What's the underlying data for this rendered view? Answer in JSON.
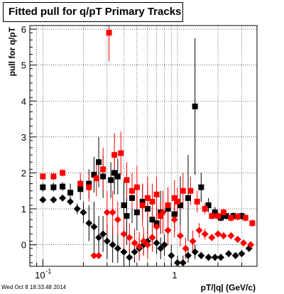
{
  "title": "Fitted pull for q/pT  Primary Tracks",
  "footer": "Wed Oct  8 18:33:48 2014",
  "chart_data": {
    "type": "scatter",
    "title": "Fitted pull for q/pT  Primary Tracks",
    "xlabel": "pT/|q|  (GeV/c)",
    "ylabel": "pull for q/pT",
    "xscale": "log",
    "xlim": [
      0.08,
      3.9
    ],
    "ylim": [
      -0.6,
      6.1
    ],
    "grid": true,
    "x_major_ticks": [
      0.1,
      1
    ],
    "x_major_ticklabels": [
      "10",
      "1"
    ],
    "x_major_tick_exponents": [
      "-1",
      ""
    ],
    "y_ticks": [
      0,
      1,
      2,
      3,
      4,
      5,
      6
    ],
    "y_ticklabels": [
      "0",
      "1",
      "2",
      "3",
      "4",
      "5",
      "6"
    ],
    "colors": {
      "black": "#000000",
      "red": "#ff0000"
    },
    "series": [
      {
        "marker": "square",
        "color": "#000000",
        "x": [
          0.1,
          0.12,
          0.14,
          0.16,
          0.19,
          0.22,
          0.24,
          0.26,
          0.28,
          0.32,
          0.34,
          0.36,
          0.4,
          0.42,
          0.46,
          0.5,
          0.55,
          0.6,
          0.65,
          0.7,
          0.75,
          0.85,
          0.95,
          1.05,
          1.2,
          1.35,
          1.5,
          1.7,
          1.9,
          2.1,
          2.3,
          2.6,
          3.0
        ],
        "y": [
          1.6,
          1.6,
          1.62,
          1.45,
          1.55,
          1.7,
          1.95,
          2.3,
          1.9,
          1.8,
          2.0,
          1.9,
          1.1,
          0.8,
          1.3,
          0.9,
          1.2,
          1.0,
          0.7,
          0.6,
          0.9,
          1.0,
          0.85,
          1.1,
          1.3,
          3.85,
          1.6,
          1.1,
          0.9,
          0.75,
          0.8,
          0.8,
          0.8
        ],
        "err": [
          0.12,
          0.12,
          0.12,
          0.25,
          0.3,
          0.4,
          0.5,
          0.7,
          0.6,
          0.5,
          0.6,
          0.5,
          0.7,
          0.8,
          0.7,
          0.5,
          0.5,
          0.7,
          0.5,
          0.5,
          0.6,
          0.6,
          0.5,
          0.8,
          1.2,
          1.9,
          0.4,
          0.2,
          0.15,
          0.1,
          0.1,
          0.1,
          0.1
        ]
      },
      {
        "marker": "square",
        "color": "#ff0000",
        "x": [
          0.1,
          0.12,
          0.14,
          0.19,
          0.22,
          0.25,
          0.28,
          0.31,
          0.34,
          0.38,
          0.42,
          0.46,
          0.5,
          0.55,
          0.6,
          0.65,
          0.7,
          0.75,
          0.85,
          0.95,
          1.0,
          1.1,
          1.25,
          1.4,
          1.6,
          1.8,
          2.0,
          2.2,
          2.5,
          2.8,
          3.2,
          3.6
        ],
        "y": [
          1.9,
          1.9,
          2.0,
          1.7,
          1.6,
          1.85,
          2.1,
          5.9,
          2.5,
          2.55,
          1.8,
          1.5,
          1.6,
          1.1,
          1.3,
          1.2,
          1.4,
          0.8,
          1.1,
          1.3,
          1.2,
          1.5,
          1.5,
          1.2,
          1.0,
          0.8,
          0.8,
          0.9,
          0.75,
          0.78,
          0.75,
          0.6
        ],
        "err": [
          0.1,
          0.1,
          0.1,
          0.3,
          0.4,
          0.5,
          0.6,
          0.8,
          0.6,
          0.6,
          0.5,
          0.5,
          0.6,
          0.6,
          0.6,
          0.5,
          0.5,
          0.4,
          0.5,
          0.5,
          0.4,
          0.5,
          0.4,
          0.3,
          0.15,
          0.1,
          0.1,
          0.1,
          0.1,
          0.1,
          0.1,
          0.1
        ]
      },
      {
        "marker": "diamond",
        "color": "#000000",
        "x": [
          0.1,
          0.12,
          0.14,
          0.16,
          0.18,
          0.2,
          0.22,
          0.24,
          0.26,
          0.28,
          0.3,
          0.33,
          0.36,
          0.4,
          0.44,
          0.48,
          0.52,
          0.56,
          0.6,
          0.65,
          0.7,
          0.75,
          0.8,
          0.9,
          1.0,
          1.1,
          1.2,
          1.35,
          1.5,
          1.7,
          1.9,
          2.1,
          2.4,
          2.7,
          3.0,
          3.4
        ],
        "y": [
          1.25,
          1.25,
          1.3,
          1.2,
          1.0,
          0.9,
          0.6,
          0.5,
          0.2,
          0.3,
          0.1,
          0.0,
          -0.1,
          -0.2,
          -0.35,
          -0.2,
          -0.1,
          0.0,
          0.1,
          0.2,
          0.05,
          -0.1,
          0.0,
          -0.3,
          -0.5,
          -0.5,
          -0.3,
          -0.2,
          -0.3,
          -0.35,
          -0.35,
          -0.35,
          -0.25,
          -0.3,
          -0.25,
          -0.1
        ],
        "err": [
          0.05,
          0.05,
          0.05,
          0.1,
          0.15,
          0.3,
          0.5,
          0.7,
          0.6,
          0.5,
          0.5,
          0.5,
          0.4,
          0.4,
          0.3,
          0.3,
          0.3,
          0.3,
          0.3,
          0.3,
          0.3,
          0.3,
          0.3,
          0.3,
          0.2,
          0.2,
          0.2,
          0.2,
          0.1,
          0.1,
          0.1,
          0.1,
          0.05,
          0.05,
          0.05,
          0.05
        ]
      },
      {
        "marker": "diamond",
        "color": "#ff0000",
        "x": [
          0.24,
          0.26,
          0.3,
          0.33,
          0.36,
          0.4,
          0.44,
          0.48,
          0.52,
          0.56,
          0.6,
          0.65,
          0.7,
          0.78,
          0.85,
          0.95,
          1.05,
          1.15,
          1.3,
          1.45,
          1.6,
          1.8,
          2.0,
          2.2,
          2.5,
          2.8,
          3.1,
          3.5
        ],
        "y": [
          -0.3,
          -0.3,
          0.9,
          0.9,
          0.7,
          0.3,
          0.2,
          0.05,
          -0.05,
          0.1,
          0.0,
          0.2,
          0.5,
          0.9,
          0.4,
          0.7,
          0.25,
          -0.1,
          0.1,
          0.4,
          0.3,
          0.2,
          0.3,
          0.25,
          0.25,
          0.15,
          0.05,
          0.0
        ],
        "err": [
          0.05,
          0.05,
          0.6,
          0.6,
          0.5,
          0.5,
          0.4,
          0.4,
          0.4,
          0.4,
          0.4,
          0.4,
          0.5,
          0.6,
          0.4,
          0.5,
          0.3,
          0.3,
          0.3,
          0.2,
          0.15,
          0.1,
          0.1,
          0.1,
          0.1,
          0.05,
          0.05,
          0.05
        ]
      }
    ]
  }
}
